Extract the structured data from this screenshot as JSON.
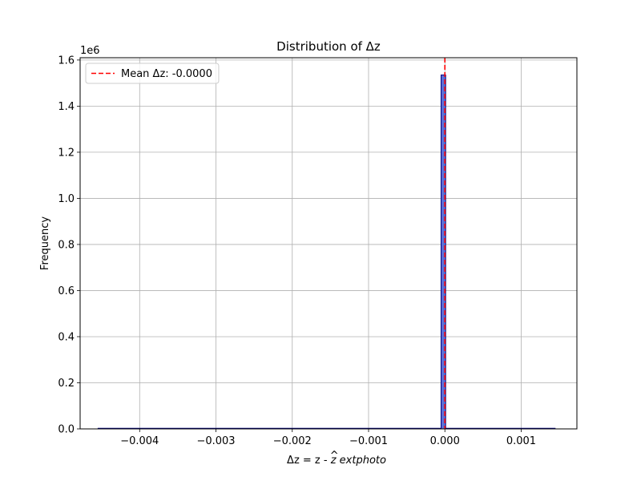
{
  "chart_data": {
    "type": "bar",
    "title": "Distribution of Δz",
    "xlabel": "Δz = z - ẑ extphoto",
    "xlabel_parts": {
      "prefix": "Δz = z - ",
      "hat_var": "z",
      "suffix": " extphoto"
    },
    "ylabel": "Frequency",
    "y_offset_label": "1e6",
    "xlim": [
      -0.00478,
      0.00173
    ],
    "ylim": [
      0,
      1610000
    ],
    "x_ticks": [
      -0.004,
      -0.003,
      -0.002,
      -0.001,
      0.0,
      0.001
    ],
    "x_tick_labels": [
      "−0.004",
      "−0.003",
      "−0.002",
      "−0.001",
      "0.000",
      "0.001"
    ],
    "y_ticks": [
      0,
      200000,
      400000,
      600000,
      800000,
      1000000,
      1200000,
      1400000,
      1600000
    ],
    "y_tick_labels": [
      "0.0",
      "0.2",
      "0.4",
      "0.6",
      "0.8",
      "1.0",
      "1.2",
      "1.4",
      "1.6"
    ],
    "grid": true,
    "hist_range": [
      -0.00455,
      0.00145
    ],
    "bars": [
      {
        "x0": -5e-05,
        "x1": 1e-05,
        "count": 1535000
      }
    ],
    "mean": {
      "value": 0.0,
      "label": "Mean Δz: -0.0000",
      "color": "#ff0000",
      "style": "dashed"
    },
    "legend": {
      "placement": "top-left"
    },
    "colors": {
      "bar_fill": "#5b6fd6",
      "bar_edge": "#000080",
      "grid": "#b0b0b0"
    }
  }
}
